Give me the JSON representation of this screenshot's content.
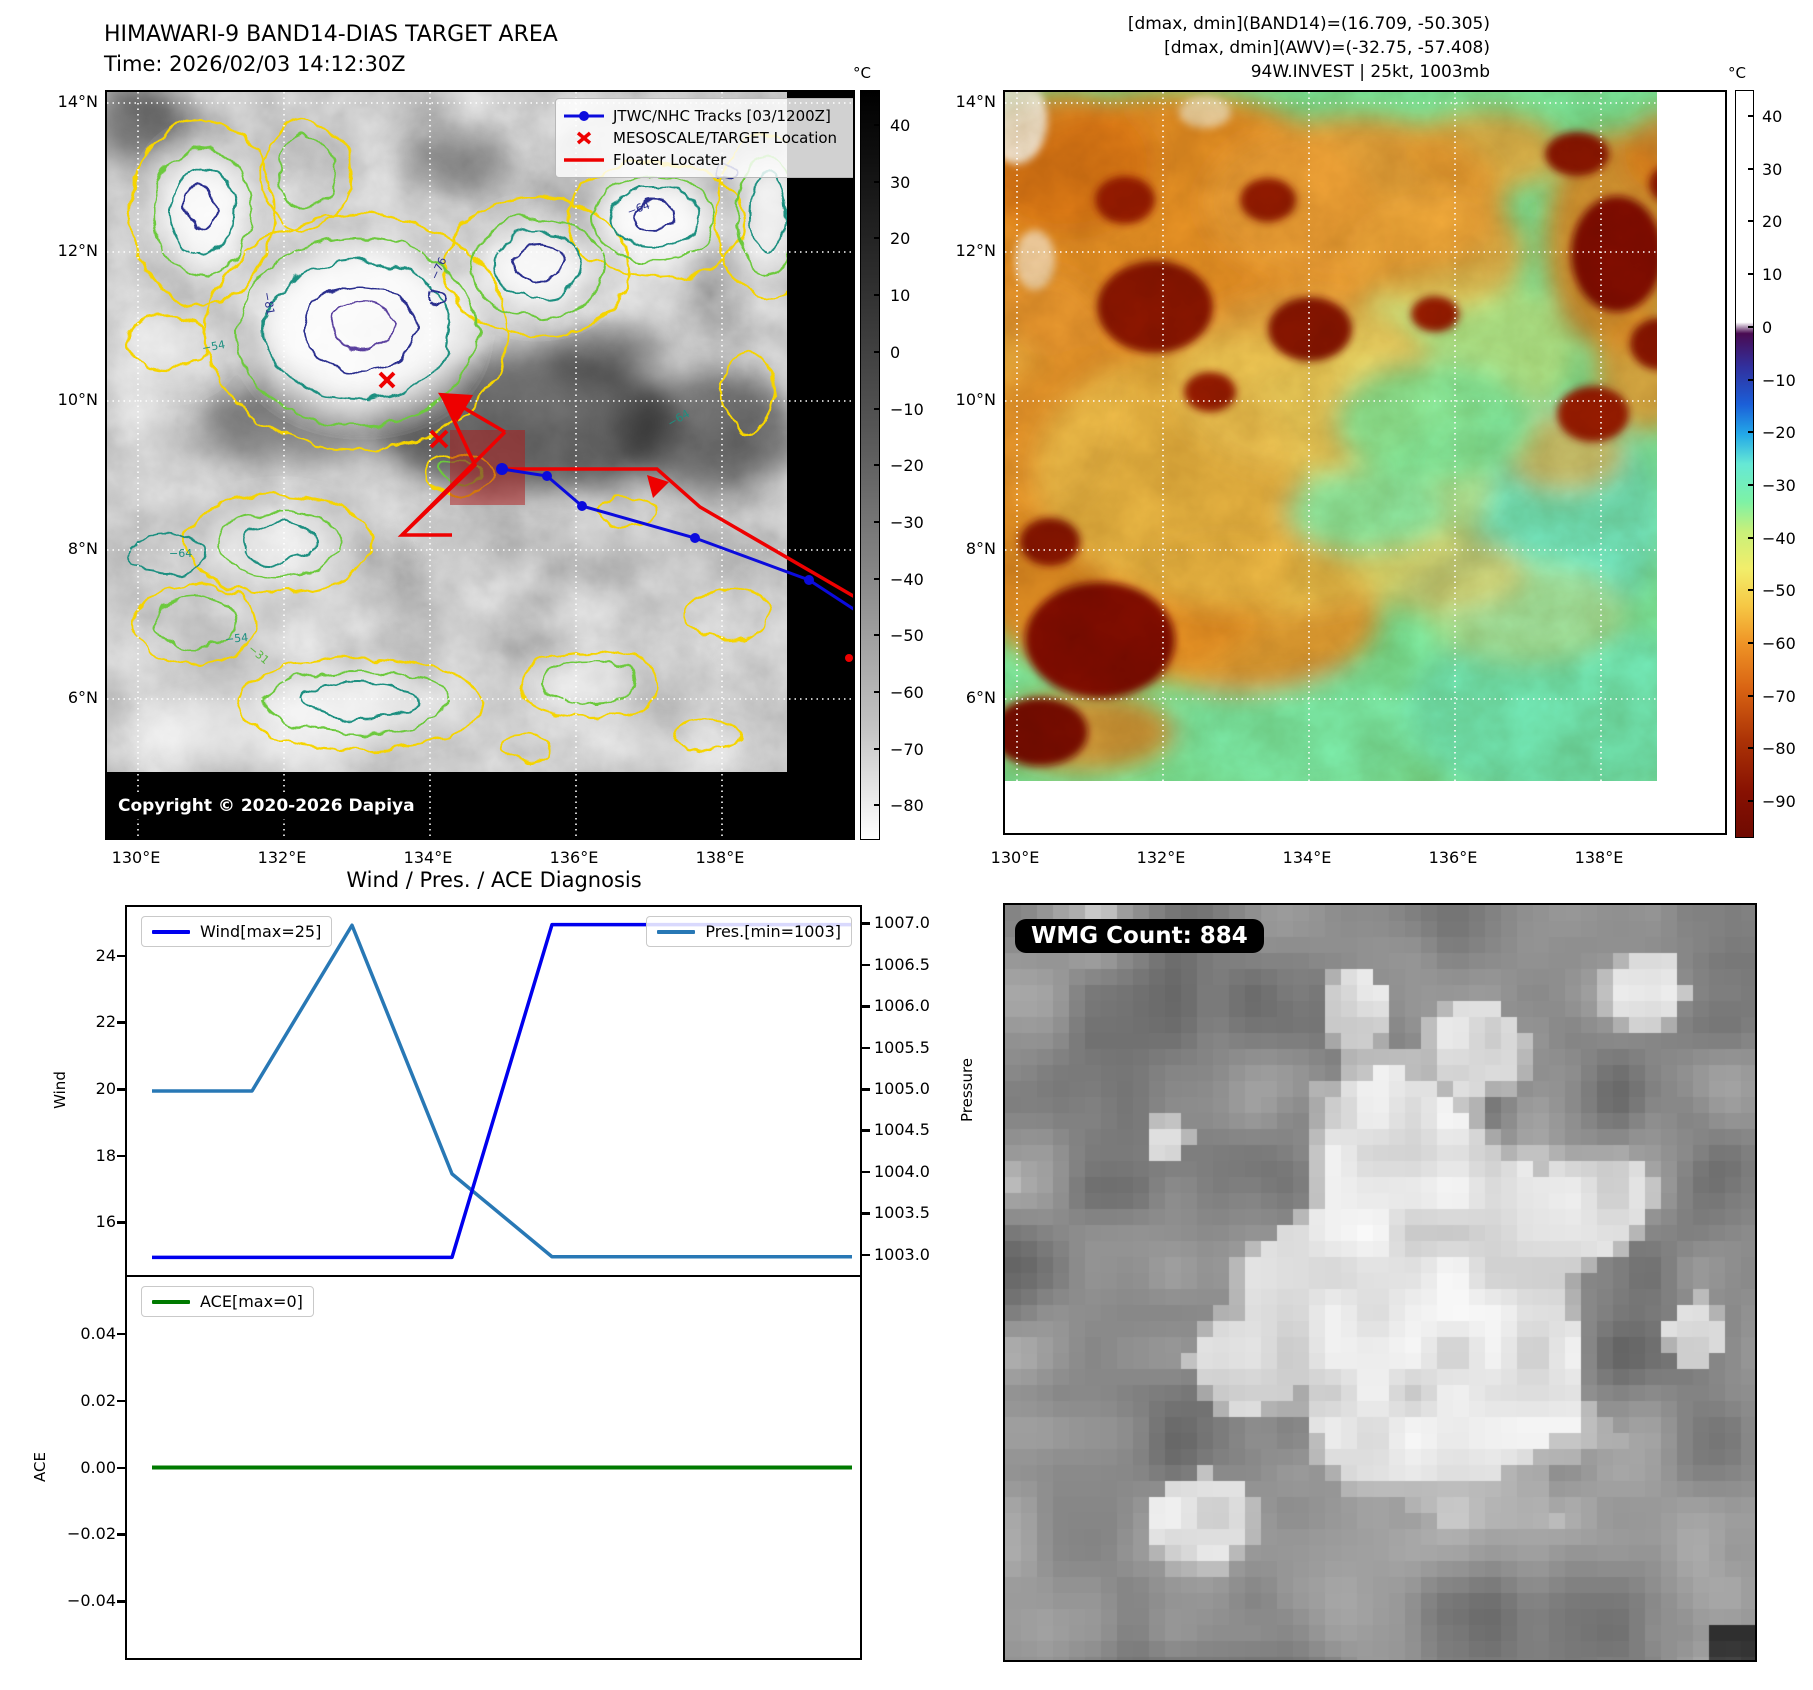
{
  "left_panel": {
    "title": "HIMAWARI-9 BAND14-DIAS TARGET AREA",
    "subtitle": "Time: 2026/02/03 14:12:30Z",
    "legend": {
      "track": "JTWC/NHC Tracks [03/1200Z]",
      "mesoscale": "MESOSCALE/TARGET Location",
      "floater": "Floater Locater"
    },
    "copyright": "Copyright © 2020-2026 Dapiya",
    "lat_ticks": [
      "14°N",
      "12°N",
      "10°N",
      "8°N",
      "6°N"
    ],
    "lon_ticks": [
      "130°E",
      "132°E",
      "134°E",
      "136°E",
      "138°E"
    ],
    "colorbar": {
      "title": "°C",
      "ticks": [
        "40",
        "30",
        "20",
        "10",
        "0",
        "−10",
        "−20",
        "−30",
        "−40",
        "−50",
        "−60",
        "−70",
        "−80"
      ]
    },
    "contour_labels": [
      "−81",
      "−76",
      "−64",
      "−54",
      "−64",
      "−54",
      "−31",
      "−64"
    ]
  },
  "right_panel": {
    "info_lines": [
      "[dmax, dmin](BAND14)=(16.709, -50.305)",
      "[dmax, dmin](AWV)=(-32.75, -57.408)",
      "94W.INVEST | 25kt, 1003mb"
    ],
    "lat_ticks": [
      "14°N",
      "12°N",
      "10°N",
      "8°N",
      "6°N"
    ],
    "lon_ticks": [
      "130°E",
      "132°E",
      "134°E",
      "136°E",
      "138°E"
    ],
    "colorbar": {
      "title": "°C",
      "ticks": [
        "40",
        "30",
        "20",
        "10",
        "0",
        "−10",
        "−20",
        "−30",
        "−40",
        "−50",
        "−60",
        "−70",
        "−80",
        "−90"
      ]
    }
  },
  "diagnosis": {
    "title": "Wind / Pres. / ACE Diagnosis",
    "wind_ylabel": "Wind",
    "pressure_ylabel": "Pressure",
    "ace_ylabel": "ACE",
    "wind_yticks": [
      "24",
      "22",
      "20",
      "18",
      "16"
    ],
    "pressure_yticks": [
      "1007.0",
      "1006.5",
      "1006.0",
      "1005.5",
      "1005.0",
      "1004.5",
      "1004.0",
      "1003.5",
      "1003.0"
    ],
    "ace_yticks": [
      "0.04",
      "0.02",
      "0.00",
      "−0.02",
      "−0.04"
    ]
  },
  "wmg": {
    "label": "WMG Count: 884"
  },
  "chart_data": [
    {
      "type": "line",
      "title": "Wind / Pres. / ACE Diagnosis",
      "x": [
        0,
        1,
        2,
        3,
        4,
        5,
        6,
        7
      ],
      "series": [
        {
          "name": "Wind[max=25]",
          "yaxis": "left",
          "color": "#0000ee",
          "values": [
            15,
            15,
            15,
            15,
            25,
            25,
            25,
            25
          ]
        },
        {
          "name": "Pres.[min=1003]",
          "yaxis": "right",
          "color": "#2878b5",
          "values": [
            1005,
            1005,
            1007,
            1004,
            1003,
            1003,
            1003,
            1003
          ]
        }
      ],
      "ylabel_left": "Wind",
      "ylabel_right": "Pressure",
      "ylim_left": [
        14.47,
        25.53
      ],
      "ylim_right": [
        1002.78,
        1007.22
      ],
      "yticks_left": [
        24,
        22,
        20,
        18,
        16
      ],
      "yticks_right": [
        1007.0,
        1006.5,
        1006.0,
        1005.5,
        1005.0,
        1004.5,
        1004.0,
        1003.5,
        1003.0
      ],
      "legend_position": "upper left / upper right",
      "grid": false
    },
    {
      "type": "line",
      "x": [
        0,
        1,
        2,
        3,
        4,
        5,
        6,
        7
      ],
      "series": [
        {
          "name": "ACE[max=0]",
          "color": "#007a00",
          "values": [
            0,
            0,
            0,
            0,
            0,
            0,
            0,
            0
          ]
        }
      ],
      "ylabel": "ACE",
      "ylim": [
        -0.057,
        0.057
      ],
      "yticks": [
        0.04,
        0.02,
        0.0,
        -0.02,
        -0.04
      ],
      "grid": false
    }
  ]
}
